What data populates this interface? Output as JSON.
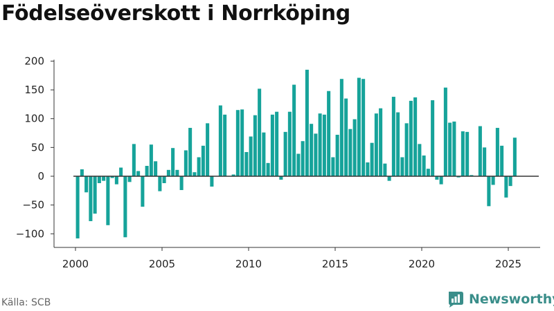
{
  "title": "Födelseöverskott i Norrköping",
  "source": "Källa: SCB",
  "brand": "Newsworthy",
  "colors": {
    "bar": "#16a39a",
    "axis": "#333333",
    "tick_text": "#222222",
    "brand": "#3a8e8a"
  },
  "chart_data": {
    "type": "bar",
    "title": "Födelseöverskott i Norrköping",
    "xlabel": "",
    "ylabel": "",
    "ylim": [
      -110,
      200
    ],
    "xlim": [
      1999.5,
      2026.0
    ],
    "grid": false,
    "yticks": [
      200,
      150,
      100,
      50,
      0,
      -50,
      -100
    ],
    "ytick_labels": [
      "200",
      "150",
      "100",
      "50",
      "0",
      "−50",
      "−100"
    ],
    "xticks": [
      2000,
      2005,
      2010,
      2015,
      2020,
      2025
    ],
    "xtick_labels": [
      "2000",
      "2005",
      "2010",
      "2015",
      "2020",
      "2025"
    ],
    "start_year": 2000,
    "period": "monthly quarter",
    "x": [
      "2000Q1",
      "2000Q2",
      "2000Q3",
      "2000Q4",
      "2001Q1",
      "2001Q2",
      "2001Q3",
      "2001Q4",
      "2002Q1",
      "2002Q2",
      "2002Q3",
      "2002Q4",
      "2003Q1",
      "2003Q2",
      "2003Q3",
      "2003Q4",
      "2004Q1",
      "2004Q2",
      "2004Q3",
      "2004Q4",
      "2005Q1",
      "2005Q2",
      "2005Q3",
      "2005Q4",
      "2006Q1",
      "2006Q2",
      "2006Q3",
      "2006Q4",
      "2007Q1",
      "2007Q2",
      "2007Q3",
      "2007Q4",
      "2008Q1",
      "2008Q2",
      "2008Q3",
      "2008Q4",
      "2009Q1",
      "2009Q2",
      "2009Q3",
      "2009Q4",
      "2010Q1",
      "2010Q2",
      "2010Q3",
      "2010Q4",
      "2011Q1",
      "2011Q2",
      "2011Q3",
      "2011Q4",
      "2012Q1",
      "2012Q2",
      "2012Q3",
      "2012Q4",
      "2013Q1",
      "2013Q2",
      "2013Q3",
      "2013Q4",
      "2014Q1",
      "2014Q2",
      "2014Q3",
      "2014Q4",
      "2015Q1",
      "2015Q2",
      "2015Q3",
      "2015Q4",
      "2016Q1",
      "2016Q2",
      "2016Q3",
      "2016Q4",
      "2017Q1",
      "2017Q2",
      "2017Q3",
      "2017Q4",
      "2018Q1",
      "2018Q2",
      "2018Q3",
      "2018Q4",
      "2019Q1",
      "2019Q2",
      "2019Q3",
      "2019Q4",
      "2020Q1",
      "2020Q2",
      "2020Q3",
      "2020Q4",
      "2021Q1",
      "2021Q2",
      "2021Q3",
      "2021Q4",
      "2022Q1",
      "2022Q2",
      "2022Q3",
      "2022Q4",
      "2023Q1",
      "2023Q2",
      "2023Q3",
      "2023Q4",
      "2024Q1",
      "2024Q2",
      "2024Q3",
      "2024Q4",
      "2025Q1",
      "2025Q2"
    ],
    "values": [
      -108,
      12,
      -28,
      -78,
      -65,
      -12,
      -8,
      -85,
      -3,
      -14,
      15,
      -106,
      -10,
      56,
      9,
      -53,
      18,
      55,
      26,
      -26,
      -12,
      11,
      49,
      11,
      -24,
      45,
      84,
      7,
      33,
      53,
      92,
      -18,
      0,
      123,
      107,
      0,
      3,
      115,
      116,
      42,
      69,
      106,
      152,
      76,
      23,
      107,
      112,
      -6,
      77,
      112,
      159,
      39,
      61,
      185,
      91,
      74,
      109,
      107,
      148,
      33,
      72,
      169,
      135,
      82,
      99,
      171,
      169,
      24,
      58,
      109,
      118,
      22,
      -8,
      138,
      111,
      33,
      92,
      131,
      137,
      56,
      36,
      13,
      132,
      -6,
      -14,
      154,
      93,
      95,
      -2,
      78,
      77,
      2,
      0,
      87,
      50,
      -52,
      -15,
      84,
      53,
      -37,
      -17,
      67
    ]
  }
}
